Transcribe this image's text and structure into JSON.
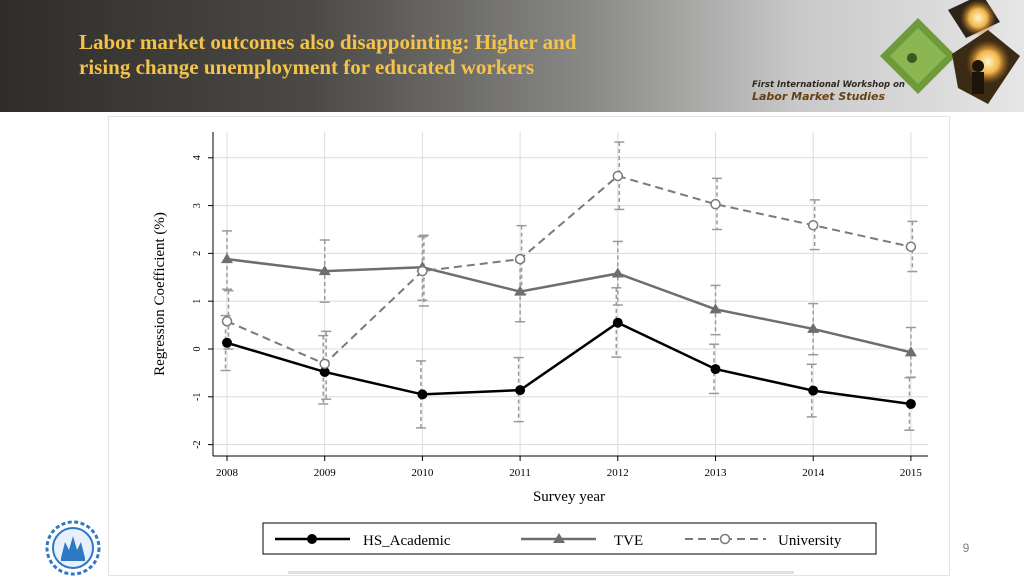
{
  "slide": {
    "title_line1": "Labor market outcomes also disappointing: Higher and",
    "title_line2": "rising change unemployment for educated workers",
    "workshop_line1": "First International Workshop on",
    "workshop_line2": "Labor Market Studies",
    "page_number": "9"
  },
  "colors": {
    "title": "#f3c34a",
    "hs_academic": "#000000",
    "tve": "#6e6e6e",
    "university": "#7a7a7a"
  },
  "chart_data": {
    "type": "line",
    "xlabel": "Survey year",
    "ylabel": "Regression Coefficient (%)",
    "x": [
      "2008",
      "2009",
      "2010",
      "2011",
      "2012",
      "2013",
      "2014",
      "2015"
    ],
    "y_ticks": [
      "4",
      "3",
      "2",
      "1",
      "0",
      "-1",
      "-2"
    ],
    "ylim": [
      -2.2,
      4.5
    ],
    "grid": true,
    "legend": "bottom",
    "series": [
      {
        "name": "HS_Academic",
        "style": "solid-filled-circle",
        "values": [
          0.13,
          -0.48,
          -0.95,
          -0.86,
          0.55,
          -0.42,
          -0.87,
          -1.15
        ],
        "ci_low": [
          -0.45,
          -1.15,
          -1.65,
          -1.52,
          -0.17,
          -0.93,
          -1.42,
          -1.7
        ],
        "ci_high": [
          0.7,
          0.28,
          -0.25,
          -0.18,
          1.28,
          0.1,
          -0.32,
          -0.6
        ]
      },
      {
        "name": "TVE",
        "style": "solid-triangle",
        "values": [
          1.88,
          1.63,
          1.71,
          1.2,
          1.58,
          0.83,
          0.42,
          -0.07
        ],
        "ci_low": [
          1.25,
          0.98,
          1.02,
          0.57,
          0.92,
          0.3,
          -0.12,
          -0.59
        ],
        "ci_high": [
          2.47,
          2.28,
          2.35,
          1.83,
          2.25,
          1.33,
          0.95,
          0.45
        ]
      },
      {
        "name": "University",
        "style": "dashed-hollow-circle",
        "values": [
          0.58,
          -0.31,
          1.63,
          1.88,
          3.62,
          3.03,
          2.59,
          2.14
        ],
        "ci_low": [
          0.0,
          -1.05,
          0.9,
          1.15,
          2.92,
          2.5,
          2.08,
          1.62
        ],
        "ci_high": [
          1.22,
          0.37,
          2.38,
          2.58,
          4.33,
          3.57,
          3.12,
          2.67
        ]
      }
    ]
  }
}
